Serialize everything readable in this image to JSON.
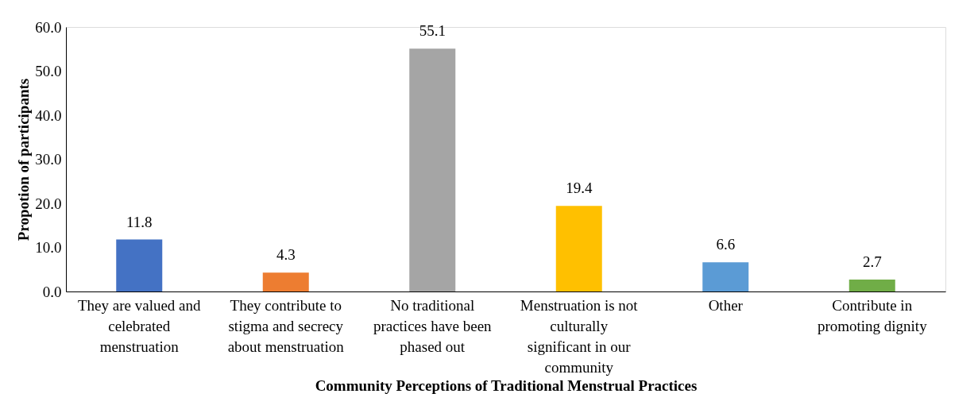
{
  "chart_data": {
    "type": "bar",
    "xlabel": "Community Perceptions of Traditional Menstrual Practices",
    "ylabel": "Propotion of participants",
    "categories": [
      "They are valued and celebrated menstruation",
      "They contribute to stigma and secrecy about menstruation",
      "No traditional practices have been phased out",
      "Menstruation is not culturally significant in our community",
      "Other",
      "Contribute in promoting dignity"
    ],
    "values": [
      11.8,
      4.3,
      55.1,
      19.4,
      6.6,
      2.7
    ],
    "colors": [
      "#4472c4",
      "#ed7d31",
      "#a5a5a5",
      "#ffc000",
      "#5b9bd5",
      "#70ad47"
    ],
    "ylim": [
      0,
      60
    ],
    "yticks": [
      {
        "value": 0,
        "label": "0.0"
      },
      {
        "value": 10,
        "label": "10.0"
      },
      {
        "value": 20,
        "label": "20.0"
      },
      {
        "value": 30,
        "label": "30.0"
      },
      {
        "value": 40,
        "label": "40.0"
      },
      {
        "value": 50,
        "label": "50.0"
      },
      {
        "value": 60,
        "label": "60.0"
      }
    ],
    "data_labels": true,
    "grid": false
  }
}
